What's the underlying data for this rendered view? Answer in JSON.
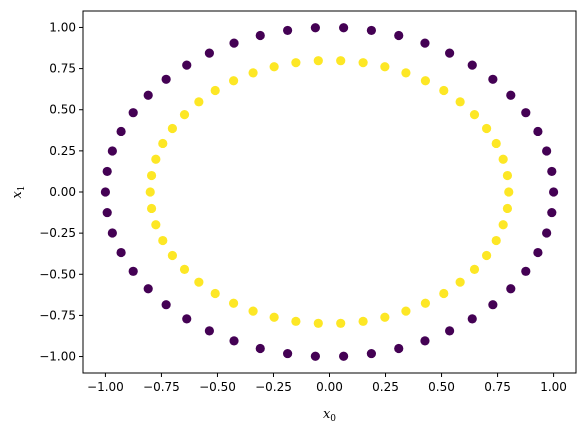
{
  "chart_data": {
    "type": "scatter",
    "title": "",
    "xlabel": "x",
    "xlabel_sub": "0",
    "ylabel": "x",
    "ylabel_sub": "1",
    "xlim": [
      -1.1,
      1.1
    ],
    "ylim": [
      -1.1,
      1.1
    ],
    "xticks": [
      -1.0,
      -0.75,
      -0.5,
      -0.25,
      0.0,
      0.25,
      0.5,
      0.75,
      1.0
    ],
    "xtick_labels": [
      "−1.00",
      "−0.75",
      "−0.50",
      "−0.25",
      "0.00",
      "0.25",
      "0.50",
      "0.75",
      "1.00"
    ],
    "yticks": [
      -1.0,
      -0.75,
      -0.5,
      -0.25,
      0.0,
      0.25,
      0.5,
      0.75,
      1.0
    ],
    "ytick_labels": [
      "−1.00",
      "−0.75",
      "−0.50",
      "−0.25",
      "0.00",
      "0.25",
      "0.50",
      "0.75",
      "1.00"
    ],
    "grid": false,
    "legend": "none",
    "series": [
      {
        "class": 0,
        "color": "#440154",
        "points": [
          [
            1.0,
            0.0
          ],
          [
            0.992,
            0.125
          ],
          [
            0.969,
            0.249
          ],
          [
            0.93,
            0.368
          ],
          [
            0.876,
            0.482
          ],
          [
            0.809,
            0.588
          ],
          [
            0.729,
            0.685
          ],
          [
            0.637,
            0.771
          ],
          [
            0.536,
            0.844
          ],
          [
            0.426,
            0.905
          ],
          [
            0.309,
            0.951
          ],
          [
            0.187,
            0.982
          ],
          [
            0.063,
            0.998
          ],
          [
            -0.063,
            0.998
          ],
          [
            -0.187,
            0.982
          ],
          [
            -0.309,
            0.951
          ],
          [
            -0.426,
            0.905
          ],
          [
            -0.536,
            0.844
          ],
          [
            -0.637,
            0.771
          ],
          [
            -0.729,
            0.685
          ],
          [
            -0.809,
            0.588
          ],
          [
            -0.876,
            0.482
          ],
          [
            -0.93,
            0.368
          ],
          [
            -0.969,
            0.249
          ],
          [
            -0.992,
            0.125
          ],
          [
            -1.0,
            0.0
          ],
          [
            -0.992,
            -0.125
          ],
          [
            -0.969,
            -0.249
          ],
          [
            -0.93,
            -0.368
          ],
          [
            -0.876,
            -0.482
          ],
          [
            -0.809,
            -0.588
          ],
          [
            -0.729,
            -0.685
          ],
          [
            -0.637,
            -0.771
          ],
          [
            -0.536,
            -0.844
          ],
          [
            -0.426,
            -0.905
          ],
          [
            -0.309,
            -0.951
          ],
          [
            -0.187,
            -0.982
          ],
          [
            -0.063,
            -0.998
          ],
          [
            0.063,
            -0.998
          ],
          [
            0.187,
            -0.982
          ],
          [
            0.309,
            -0.951
          ],
          [
            0.426,
            -0.905
          ],
          [
            0.536,
            -0.844
          ],
          [
            0.637,
            -0.771
          ],
          [
            0.729,
            -0.685
          ],
          [
            0.809,
            -0.588
          ],
          [
            0.876,
            -0.482
          ],
          [
            0.93,
            -0.368
          ],
          [
            0.969,
            -0.249
          ],
          [
            0.992,
            -0.125
          ]
        ]
      },
      {
        "class": 1,
        "color": "#fde725",
        "points": [
          [
            0.8,
            0.0
          ],
          [
            0.794,
            0.1
          ],
          [
            0.775,
            0.199
          ],
          [
            0.744,
            0.295
          ],
          [
            0.701,
            0.386
          ],
          [
            0.647,
            0.47
          ],
          [
            0.583,
            0.548
          ],
          [
            0.51,
            0.617
          ],
          [
            0.428,
            0.676
          ],
          [
            0.341,
            0.724
          ],
          [
            0.247,
            0.761
          ],
          [
            0.15,
            0.786
          ],
          [
            0.05,
            0.798
          ],
          [
            -0.05,
            0.798
          ],
          [
            -0.15,
            0.786
          ],
          [
            -0.247,
            0.761
          ],
          [
            -0.341,
            0.724
          ],
          [
            -0.428,
            0.676
          ],
          [
            -0.51,
            0.617
          ],
          [
            -0.583,
            0.548
          ],
          [
            -0.647,
            0.47
          ],
          [
            -0.701,
            0.386
          ],
          [
            -0.744,
            0.295
          ],
          [
            -0.775,
            0.199
          ],
          [
            -0.794,
            0.1
          ],
          [
            -0.8,
            0.0
          ],
          [
            -0.794,
            -0.1
          ],
          [
            -0.775,
            -0.199
          ],
          [
            -0.744,
            -0.295
          ],
          [
            -0.701,
            -0.386
          ],
          [
            -0.647,
            -0.47
          ],
          [
            -0.583,
            -0.548
          ],
          [
            -0.51,
            -0.617
          ],
          [
            -0.428,
            -0.676
          ],
          [
            -0.341,
            -0.724
          ],
          [
            -0.247,
            -0.761
          ],
          [
            -0.15,
            -0.786
          ],
          [
            -0.05,
            -0.798
          ],
          [
            0.05,
            -0.798
          ],
          [
            0.15,
            -0.786
          ],
          [
            0.247,
            -0.761
          ],
          [
            0.341,
            -0.724
          ],
          [
            0.428,
            -0.676
          ],
          [
            0.51,
            -0.617
          ],
          [
            0.583,
            -0.548
          ],
          [
            0.647,
            -0.47
          ],
          [
            0.701,
            -0.386
          ],
          [
            0.744,
            -0.295
          ],
          [
            0.775,
            -0.199
          ],
          [
            0.794,
            -0.1
          ]
        ]
      }
    ]
  }
}
